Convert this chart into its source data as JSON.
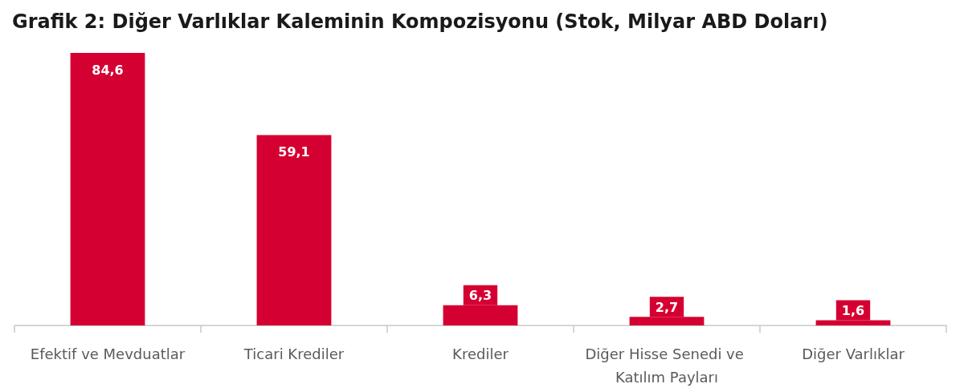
{
  "chart_data": {
    "type": "bar",
    "title": "Grafik 2: Diğer Varlıklar Kaleminin Kompozisyonu (Stok, Milyar ABD Doları)",
    "categories": [
      "Efektif ve Mevduatlar",
      "Ticari Krediler",
      "Krediler",
      "Diğer Hisse Senedi ve Katılım Payları",
      "Diğer Varlıklar"
    ],
    "values": [
      84.6,
      59.1,
      6.3,
      2.7,
      1.6
    ],
    "color": "#d50032",
    "value_labels": [
      "84,6",
      "59,1",
      "6,3",
      "2,7",
      "1,6"
    ]
  }
}
